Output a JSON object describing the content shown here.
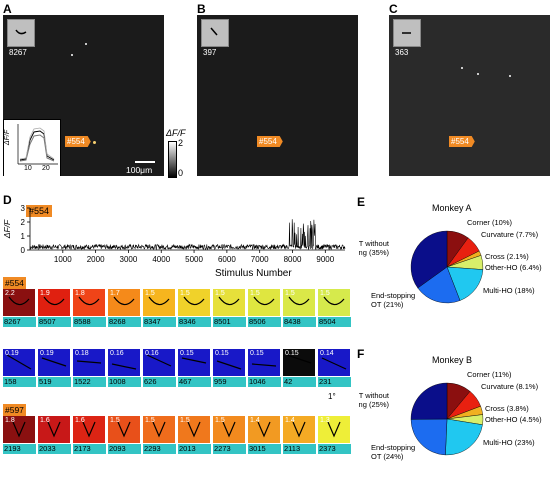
{
  "panels": {
    "A": {
      "letter": "A",
      "thumb_number": "8267",
      "cell_tag": "#554",
      "scale_bar": "100μm"
    },
    "B": {
      "letter": "B",
      "thumb_number": "397",
      "cell_tag": "#554"
    },
    "C": {
      "letter": "C",
      "thumb_number": "363",
      "cell_tag": "#554"
    },
    "colorbar": {
      "label": "ΔF/F",
      "max": "2",
      "min": "0"
    },
    "inset": {
      "ylabel": "ΔF/F",
      "xticks": [
        "10",
        "20"
      ]
    }
  },
  "panel_D": {
    "letter": "D",
    "trace_tag": "#554",
    "ylabel": "ΔF/F",
    "yticks": [
      "0",
      "1",
      "2",
      "3"
    ],
    "xlabel": "Stimulus Number",
    "xticks": [
      "1000",
      "2000",
      "3000",
      "4000",
      "5000",
      "6000",
      "7000",
      "8000",
      "9000"
    ],
    "rows": [
      {
        "tag": "#554",
        "cells": [
          {
            "val": "2.2",
            "id": "8267",
            "color": "#8a1010"
          },
          {
            "val": "1.9",
            "id": "8507",
            "color": "#e02010"
          },
          {
            "val": "1.8",
            "id": "8588",
            "color": "#f04418"
          },
          {
            "val": "1.7",
            "id": "8268",
            "color": "#f58a1a"
          },
          {
            "val": "1.5",
            "id": "8347",
            "color": "#f6b51e"
          },
          {
            "val": "1.5",
            "id": "8346",
            "color": "#f0d22a"
          },
          {
            "val": "1.5",
            "id": "8501",
            "color": "#e6e03a"
          },
          {
            "val": "1.5",
            "id": "8506",
            "color": "#dfe640"
          },
          {
            "val": "1.5",
            "id": "8438",
            "color": "#dae848"
          },
          {
            "val": "1.5",
            "id": "8504",
            "color": "#d6ea4c"
          }
        ]
      },
      {
        "tag": "",
        "cells": [
          {
            "val": "0.19",
            "id": "158",
            "color": "#1818c8"
          },
          {
            "val": "0.19",
            "id": "519",
            "color": "#1818c8"
          },
          {
            "val": "0.18",
            "id": "1522",
            "color": "#1818c8"
          },
          {
            "val": "0.16",
            "id": "1008",
            "color": "#1818c8"
          },
          {
            "val": "0.16",
            "id": "626",
            "color": "#1818c8"
          },
          {
            "val": "0.15",
            "id": "467",
            "color": "#1818c8"
          },
          {
            "val": "0.15",
            "id": "959",
            "color": "#1818c8"
          },
          {
            "val": "0.15",
            "id": "1046",
            "color": "#1818c8"
          },
          {
            "val": "0.15",
            "id": "42",
            "color": "#0b0b0b"
          },
          {
            "val": "0.14",
            "id": "231",
            "color": "#1818c8"
          }
        ]
      },
      {
        "tag": "#597",
        "cells": [
          {
            "val": "1.8",
            "id": "2193",
            "color": "#8a1010"
          },
          {
            "val": "1.6",
            "id": "2033",
            "color": "#c81818"
          },
          {
            "val": "1.6",
            "id": "2173",
            "color": "#dc2414"
          },
          {
            "val": "1.5",
            "id": "2093",
            "color": "#e8501a"
          },
          {
            "val": "1.5",
            "id": "2293",
            "color": "#ef6c1c"
          },
          {
            "val": "1.5",
            "id": "2013",
            "color": "#f0781c"
          },
          {
            "val": "1.5",
            "id": "2273",
            "color": "#f28a1e"
          },
          {
            "val": "1.4",
            "id": "3015",
            "color": "#f29a22"
          },
          {
            "val": "1.4",
            "id": "2113",
            "color": "#f4aa24"
          },
          {
            "val": "1.3",
            "id": "2373",
            "color": "#eeee38"
          }
        ]
      }
    ],
    "degree_label": "1°"
  },
  "chart_data": [
    {
      "type": "pie",
      "letter": "E",
      "title": "Monkey A",
      "slices": [
        {
          "label": "Corner (10%)",
          "value": 10,
          "color": "#8b0f0f"
        },
        {
          "label": "Curvature (7.7%)",
          "value": 7.7,
          "color": "#e82010"
        },
        {
          "label": "Cross (2.1%)",
          "value": 2.1,
          "color": "#f0b020"
        },
        {
          "label": "Other-HO (6.4%)",
          "value": 6.4,
          "color": "#d8ef6a"
        },
        {
          "label": "Multi-HO (18%)",
          "value": 18,
          "color": "#20c8f0"
        },
        {
          "label": "End-stopping OT (21%)",
          "value": 21,
          "color": "#1c6cf0"
        },
        {
          "label": "OT without end-stopping (35%)",
          "value": 35,
          "color": "#0a0e8a"
        }
      ]
    },
    {
      "type": "pie",
      "letter": "F",
      "title": "Monkey B",
      "slices": [
        {
          "label": "Corner (11%)",
          "value": 11,
          "color": "#8b0f0f"
        },
        {
          "label": "Curvature (8.1%)",
          "value": 8.1,
          "color": "#e82010"
        },
        {
          "label": "Cross (3.8%)",
          "value": 3.8,
          "color": "#f0b020"
        },
        {
          "label": "Other-HO (4.5%)",
          "value": 4.5,
          "color": "#d8ef6a"
        },
        {
          "label": "Multi-HO (23%)",
          "value": 23,
          "color": "#20c8f0"
        },
        {
          "label": "End-stopping OT (24%)",
          "value": 24,
          "color": "#1c6cf0"
        },
        {
          "label": "OT without end-stopping (25%)",
          "value": 25,
          "color": "#0a0e8a"
        }
      ]
    }
  ]
}
